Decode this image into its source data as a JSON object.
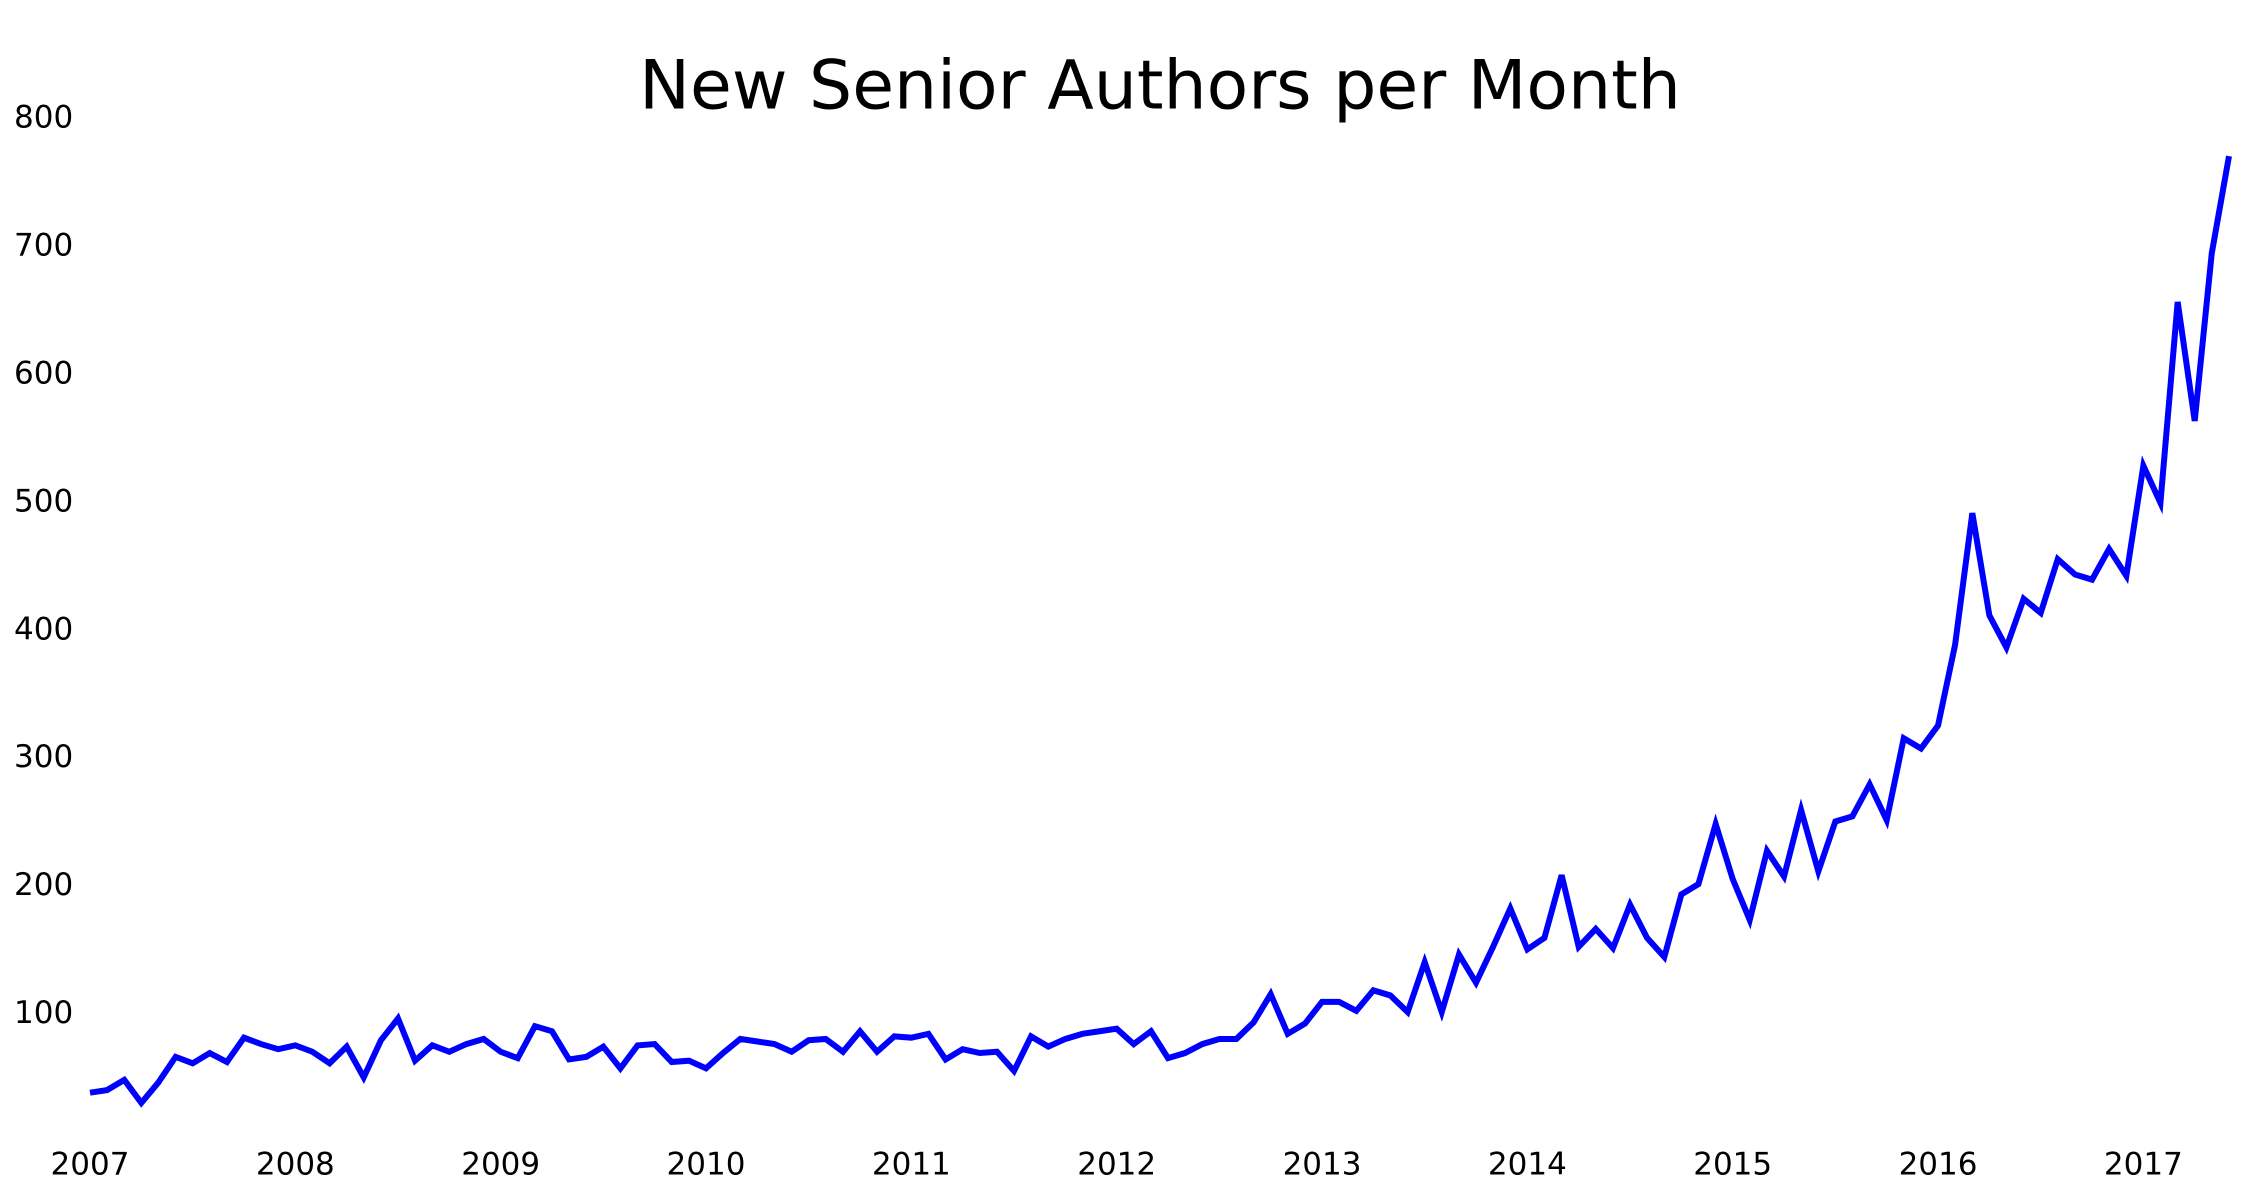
{
  "chart_data": {
    "type": "line",
    "title": "New Senior Authors per Month",
    "x": [
      2007,
      2007.083,
      2007.167,
      2007.25,
      2007.333,
      2007.417,
      2007.5,
      2007.583,
      2007.667,
      2007.75,
      2007.833,
      2007.917,
      2008,
      2008.083,
      2008.167,
      2008.25,
      2008.333,
      2008.417,
      2008.5,
      2008.583,
      2008.667,
      2008.75,
      2008.833,
      2008.917,
      2009,
      2009.083,
      2009.167,
      2009.25,
      2009.333,
      2009.417,
      2009.5,
      2009.583,
      2009.667,
      2009.75,
      2009.833,
      2009.917,
      2010,
      2010.083,
      2010.167,
      2010.25,
      2010.333,
      2010.417,
      2010.5,
      2010.583,
      2010.667,
      2010.75,
      2010.833,
      2010.917,
      2011,
      2011.083,
      2011.167,
      2011.25,
      2011.333,
      2011.417,
      2011.5,
      2011.583,
      2011.667,
      2011.75,
      2011.833,
      2011.917,
      2012,
      2012.083,
      2012.167,
      2012.25,
      2012.333,
      2012.417,
      2012.5,
      2012.583,
      2012.667,
      2012.75,
      2012.833,
      2012.917,
      2013,
      2013.083,
      2013.167,
      2013.25,
      2013.333,
      2013.417,
      2013.5,
      2013.583,
      2013.667,
      2013.75,
      2013.833,
      2013.917,
      2014,
      2014.083,
      2014.167,
      2014.25,
      2014.333,
      2014.417,
      2014.5,
      2014.583,
      2014.667,
      2014.75,
      2014.833,
      2014.917,
      2015,
      2015.083,
      2015.167,
      2015.25,
      2015.333,
      2015.417,
      2015.5,
      2015.583,
      2015.667,
      2015.75,
      2015.833,
      2015.917,
      2016,
      2016.083,
      2016.167,
      2016.25,
      2016.333,
      2016.417,
      2016.5,
      2016.583,
      2016.667,
      2016.75,
      2016.833,
      2016.917,
      2017,
      2017.083,
      2017.167,
      2017.25,
      2017.333,
      2017.417
    ],
    "series": [
      {
        "color": "#0000ff",
        "values": [
          39,
          41,
          49,
          31,
          47,
          67,
          62,
          70,
          63,
          82,
          77,
          73,
          76,
          71,
          62,
          75,
          51,
          80,
          97,
          64,
          76,
          71,
          77,
          81,
          71,
          66,
          91,
          87,
          65,
          67,
          75,
          58,
          76,
          77,
          63,
          64,
          58,
          70,
          81,
          79,
          77,
          71,
          80,
          81,
          71,
          87,
          71,
          83,
          82,
          85,
          65,
          73,
          70,
          71,
          56,
          83,
          75,
          81,
          85,
          87,
          89,
          77,
          87,
          66,
          70,
          77,
          81,
          81,
          94,
          116,
          85,
          93,
          110,
          110,
          103,
          119,
          115,
          102,
          141,
          102,
          147,
          125,
          153,
          183,
          151,
          160,
          209,
          153,
          167,
          152,
          186,
          160,
          145,
          194,
          202,
          249,
          206,
          174,
          228,
          208,
          260,
          212,
          251,
          255,
          280,
          252,
          316,
          308,
          326,
          389,
          492,
          412,
          387,
          425,
          414,
          456,
          444,
          440,
          464,
          443,
          529,
          500,
          657,
          564,
          695,
          771
        ]
      }
    ],
    "xlim": [
      2007,
      2017.417
    ],
    "ylim": [
      20,
      800
    ],
    "xticks": [
      2007,
      2008,
      2009,
      2010,
      2011,
      2012,
      2013,
      2014,
      2015,
      2016,
      2017
    ],
    "yticks": [
      100,
      200,
      300,
      400,
      500,
      600,
      700,
      800
    ]
  }
}
